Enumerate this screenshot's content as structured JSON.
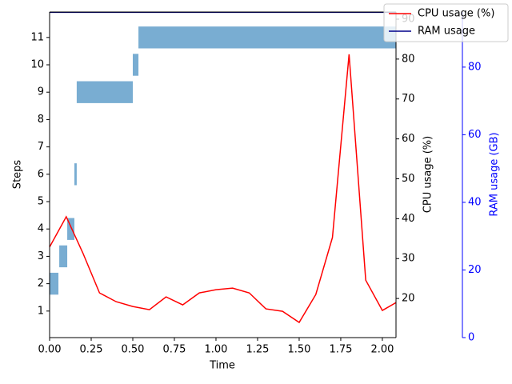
{
  "chart_data": {
    "type": "barh",
    "xlabel": "Time",
    "ylabel": "Steps",
    "y2label": "CPU usage (%)",
    "y3label": "RAM usage (GB)",
    "bars": {
      "color": "#1f77b4",
      "y": [
        2,
        3,
        4,
        6,
        9,
        10,
        11
      ],
      "start": [
        0.0,
        0.058,
        0.106,
        0.149,
        0.163,
        0.5,
        0.534
      ],
      "end": [
        0.053,
        0.106,
        0.149,
        0.163,
        0.5,
        0.534,
        2.1
      ]
    },
    "x": [
      0.0,
      0.1,
      0.2,
      0.3,
      0.4,
      0.5,
      0.6,
      0.7,
      0.8,
      0.9,
      1.0,
      1.1,
      1.2,
      1.3,
      1.4,
      1.5,
      1.6,
      1.7,
      1.8,
      1.9,
      2.0,
      2.1
    ],
    "series": [
      {
        "name": "CPU usage (%)",
        "type": "line",
        "color": "#ff0000",
        "axis": "y2",
        "values": [
          32.9,
          40.5,
          31.4,
          21.4,
          19.2,
          18.0,
          17.2,
          20.4,
          18.4,
          21.4,
          22.2,
          22.6,
          21.4,
          17.4,
          16.8,
          14.0,
          21.0,
          35.3,
          81.2,
          24.6,
          17.0,
          19.4
        ]
      },
      {
        "name": "RAM usage",
        "type": "line",
        "color": "#00008b",
        "axis": "y3",
        "values": [
          96.2,
          96.2,
          96.2,
          96.2,
          96.2,
          96.2,
          96.2,
          96.2,
          96.2,
          96.2,
          96.2,
          96.2,
          96.2,
          96.2,
          96.2,
          96.2,
          96.2,
          96.2,
          96.2,
          96.2,
          96.2,
          96.2
        ]
      }
    ],
    "xlim": [
      0,
      2.082
    ],
    "xticks": [
      {
        "value": 0,
        "label": "0.00"
      },
      {
        "value": 0.25,
        "label": "0.25"
      },
      {
        "value": 0.5,
        "label": "0.50"
      },
      {
        "value": 0.75,
        "label": "0.75"
      },
      {
        "value": 1,
        "label": "1.00"
      },
      {
        "value": 1.25,
        "label": "1.25"
      },
      {
        "value": 1.5,
        "label": "1.50"
      },
      {
        "value": 1.75,
        "label": "1.75"
      },
      {
        "value": 2,
        "label": "2.00"
      }
    ],
    "ylim": [
      0.03,
      11.93
    ],
    "yticks": [
      1,
      2,
      3,
      4,
      5,
      6,
      7,
      8,
      9,
      10,
      11
    ],
    "y2lim": [
      10.2,
      91.8
    ],
    "y2ticks": [
      20,
      30,
      40,
      50,
      60,
      70,
      80,
      90
    ],
    "y3lim": [
      0,
      96.3
    ],
    "y3ticks": [
      0,
      20,
      40,
      60,
      80
    ],
    "y3color": "#0000ff",
    "legend": "upper right"
  }
}
